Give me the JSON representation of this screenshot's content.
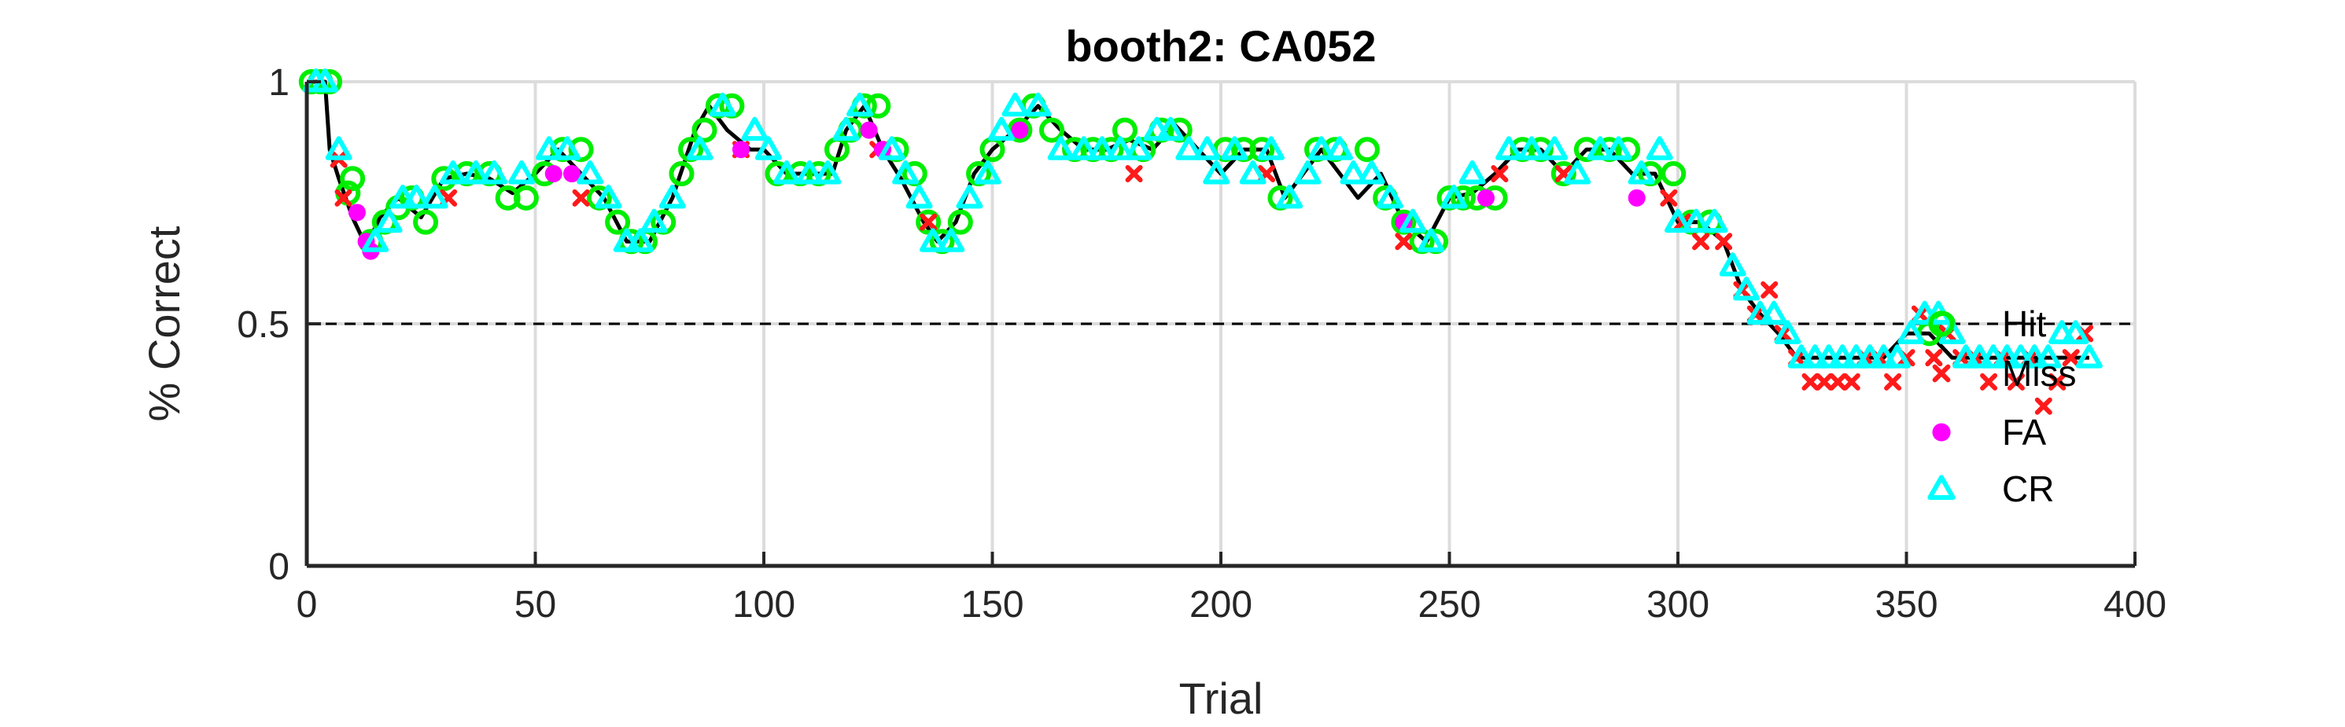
{
  "chart_data": {
    "type": "scatter",
    "title": "booth2: CA052",
    "xlabel": "Trial",
    "ylabel": "% Correct",
    "xlim": [
      0,
      400
    ],
    "ylim": [
      0,
      1
    ],
    "xticks": [
      0,
      50,
      100,
      150,
      200,
      250,
      300,
      350,
      400
    ],
    "yticks": [
      0,
      0.5,
      1
    ],
    "xtick_labels": [
      "0",
      "50",
      "100",
      "150",
      "200",
      "250",
      "300",
      "350",
      "400"
    ],
    "ytick_labels": [
      "0",
      "0.5",
      "1"
    ],
    "grid": true,
    "reference_line": 0.5,
    "legend_position": "right",
    "colors": {
      "line": "#000000",
      "hit": "#00ee00",
      "miss": "#ff1a1a",
      "fa": "#ff00ff",
      "cr": "#00ffff",
      "grid": "#dcdcdc",
      "reference": "#000000"
    },
    "line": {
      "x": [
        0,
        4,
        5,
        7,
        10,
        13,
        16,
        20,
        25,
        30,
        35,
        40,
        45,
        50,
        55,
        60,
        65,
        70,
        75,
        80,
        85,
        88,
        92,
        97,
        100,
        105,
        110,
        115,
        118,
        122,
        126,
        130,
        135,
        138,
        142,
        146,
        150,
        155,
        160,
        165,
        170,
        175,
        180,
        185,
        190,
        195,
        200,
        205,
        210,
        214,
        218,
        222,
        226,
        230,
        235,
        240,
        245,
        250,
        255,
        260,
        265,
        270,
        275,
        280,
        285,
        290,
        295,
        300,
        305,
        310,
        314,
        318,
        322,
        326,
        330,
        335,
        340,
        345,
        350,
        355,
        360,
        365,
        370,
        375,
        380,
        385,
        390
      ],
      "y": [
        1.0,
        1.0,
        0.86,
        0.8,
        0.72,
        0.66,
        0.72,
        0.76,
        0.72,
        0.8,
        0.81,
        0.8,
        0.77,
        0.81,
        0.86,
        0.81,
        0.76,
        0.67,
        0.67,
        0.76,
        0.9,
        0.95,
        0.9,
        0.86,
        0.86,
        0.81,
        0.81,
        0.81,
        0.9,
        0.95,
        0.86,
        0.8,
        0.71,
        0.67,
        0.71,
        0.81,
        0.86,
        0.9,
        0.95,
        0.9,
        0.86,
        0.86,
        0.88,
        0.86,
        0.91,
        0.86,
        0.81,
        0.86,
        0.86,
        0.76,
        0.81,
        0.86,
        0.81,
        0.76,
        0.81,
        0.71,
        0.67,
        0.76,
        0.77,
        0.81,
        0.86,
        0.86,
        0.81,
        0.86,
        0.86,
        0.81,
        0.81,
        0.71,
        0.71,
        0.67,
        0.57,
        0.52,
        0.48,
        0.43,
        0.43,
        0.43,
        0.43,
        0.43,
        0.48,
        0.48,
        0.43,
        0.43,
        0.43,
        0.43,
        0.43,
        0.43,
        0.43
      ]
    },
    "series": [
      {
        "name": "Hit",
        "marker": "circle-open",
        "x": [
          1,
          3,
          5,
          9,
          10,
          14,
          17,
          20,
          23,
          26,
          30,
          35,
          40,
          44,
          48,
          52,
          56,
          60,
          64,
          68,
          71,
          74,
          78,
          82,
          84,
          87,
          90,
          93,
          103,
          108,
          112,
          116,
          119,
          122,
          125,
          129,
          133,
          136,
          139,
          143,
          147,
          150,
          156,
          159,
          163,
          168,
          172,
          176,
          179,
          183,
          187,
          191,
          201,
          205,
          209,
          213,
          221,
          225,
          232,
          236,
          240,
          244,
          247,
          250,
          253,
          256,
          260,
          266,
          270,
          275,
          280,
          285,
          289,
          294,
          299,
          303,
          307,
          355,
          358
        ],
        "y": [
          1.0,
          1.0,
          1.0,
          0.77,
          0.8,
          0.67,
          0.71,
          0.74,
          0.76,
          0.71,
          0.8,
          0.81,
          0.81,
          0.76,
          0.76,
          0.81,
          0.86,
          0.86,
          0.76,
          0.71,
          0.67,
          0.67,
          0.71,
          0.81,
          0.86,
          0.9,
          0.95,
          0.95,
          0.81,
          0.81,
          0.81,
          0.86,
          0.9,
          0.95,
          0.95,
          0.86,
          0.81,
          0.71,
          0.67,
          0.71,
          0.81,
          0.86,
          0.9,
          0.95,
          0.9,
          0.86,
          0.86,
          0.86,
          0.9,
          0.86,
          0.9,
          0.9,
          0.86,
          0.86,
          0.86,
          0.76,
          0.86,
          0.86,
          0.86,
          0.76,
          0.71,
          0.67,
          0.67,
          0.76,
          0.76,
          0.76,
          0.76,
          0.86,
          0.86,
          0.81,
          0.86,
          0.86,
          0.86,
          0.81,
          0.81,
          0.71,
          0.71,
          0.48,
          0.5
        ]
      },
      {
        "name": "Miss",
        "marker": "x",
        "x": [
          7,
          8,
          31,
          60,
          95,
          125,
          136,
          181,
          210,
          240,
          261,
          275,
          298,
          301,
          305,
          310,
          314,
          317,
          320,
          323,
          326,
          329,
          332,
          335,
          338,
          341,
          344,
          347,
          350,
          353,
          356,
          359,
          362,
          365,
          368,
          371,
          374,
          377,
          380,
          383,
          386,
          389
        ],
        "y": [
          0.84,
          0.76,
          0.76,
          0.76,
          0.86,
          0.86,
          0.71,
          0.81,
          0.81,
          0.67,
          0.81,
          0.81,
          0.76,
          0.71,
          0.67,
          0.67,
          0.57,
          0.52,
          0.57,
          0.48,
          0.43,
          0.38,
          0.38,
          0.38,
          0.38,
          0.43,
          0.43,
          0.38,
          0.43,
          0.52,
          0.43,
          0.48,
          0.43,
          0.43,
          0.38,
          0.43,
          0.38,
          0.43,
          0.33,
          0.38,
          0.43,
          0.48
        ]
      },
      {
        "name": "FA",
        "marker": "circle-filled",
        "x": [
          11,
          13,
          14,
          54,
          58,
          95,
          123,
          126,
          156,
          240,
          258,
          291
        ],
        "y": [
          0.73,
          0.67,
          0.65,
          0.81,
          0.81,
          0.86,
          0.9,
          0.86,
          0.9,
          0.71,
          0.76,
          0.76
        ]
      },
      {
        "name": "CR",
        "marker": "triangle-up",
        "x": [
          2,
          4,
          7,
          15,
          18,
          21,
          24,
          28,
          32,
          37,
          41,
          47,
          53,
          57,
          62,
          66,
          70,
          73,
          76,
          80,
          86,
          91,
          98,
          101,
          105,
          110,
          114,
          118,
          121,
          128,
          131,
          134,
          137,
          141,
          145,
          149,
          152,
          155,
          160,
          165,
          170,
          174,
          178,
          182,
          186,
          189,
          193,
          197,
          199,
          203,
          207,
          211,
          215,
          219,
          222,
          226,
          229,
          233,
          237,
          242,
          246,
          251,
          255,
          263,
          268,
          273,
          278,
          283,
          287,
          292,
          296,
          300,
          304,
          308,
          312,
          315,
          318,
          321,
          324,
          327,
          330,
          333,
          336,
          339,
          342,
          345,
          348,
          351,
          354,
          357,
          360,
          363,
          366,
          369,
          372,
          375,
          378,
          381,
          384,
          387,
          390
        ],
        "y": [
          1.0,
          1.0,
          0.86,
          0.67,
          0.71,
          0.76,
          0.76,
          0.76,
          0.81,
          0.81,
          0.81,
          0.81,
          0.86,
          0.86,
          0.81,
          0.76,
          0.67,
          0.67,
          0.71,
          0.76,
          0.86,
          0.95,
          0.9,
          0.86,
          0.81,
          0.81,
          0.81,
          0.9,
          0.95,
          0.86,
          0.81,
          0.76,
          0.67,
          0.67,
          0.76,
          0.81,
          0.9,
          0.95,
          0.95,
          0.86,
          0.86,
          0.86,
          0.86,
          0.86,
          0.9,
          0.9,
          0.86,
          0.86,
          0.81,
          0.86,
          0.81,
          0.86,
          0.76,
          0.81,
          0.86,
          0.86,
          0.81,
          0.81,
          0.76,
          0.71,
          0.67,
          0.76,
          0.81,
          0.86,
          0.86,
          0.86,
          0.81,
          0.86,
          0.86,
          0.81,
          0.86,
          0.71,
          0.71,
          0.71,
          0.62,
          0.57,
          0.52,
          0.52,
          0.48,
          0.43,
          0.43,
          0.43,
          0.43,
          0.43,
          0.43,
          0.43,
          0.43,
          0.48,
          0.52,
          0.52,
          0.48,
          0.43,
          0.43,
          0.43,
          0.43,
          0.43,
          0.43,
          0.43,
          0.48,
          0.48,
          0.43
        ]
      }
    ]
  }
}
